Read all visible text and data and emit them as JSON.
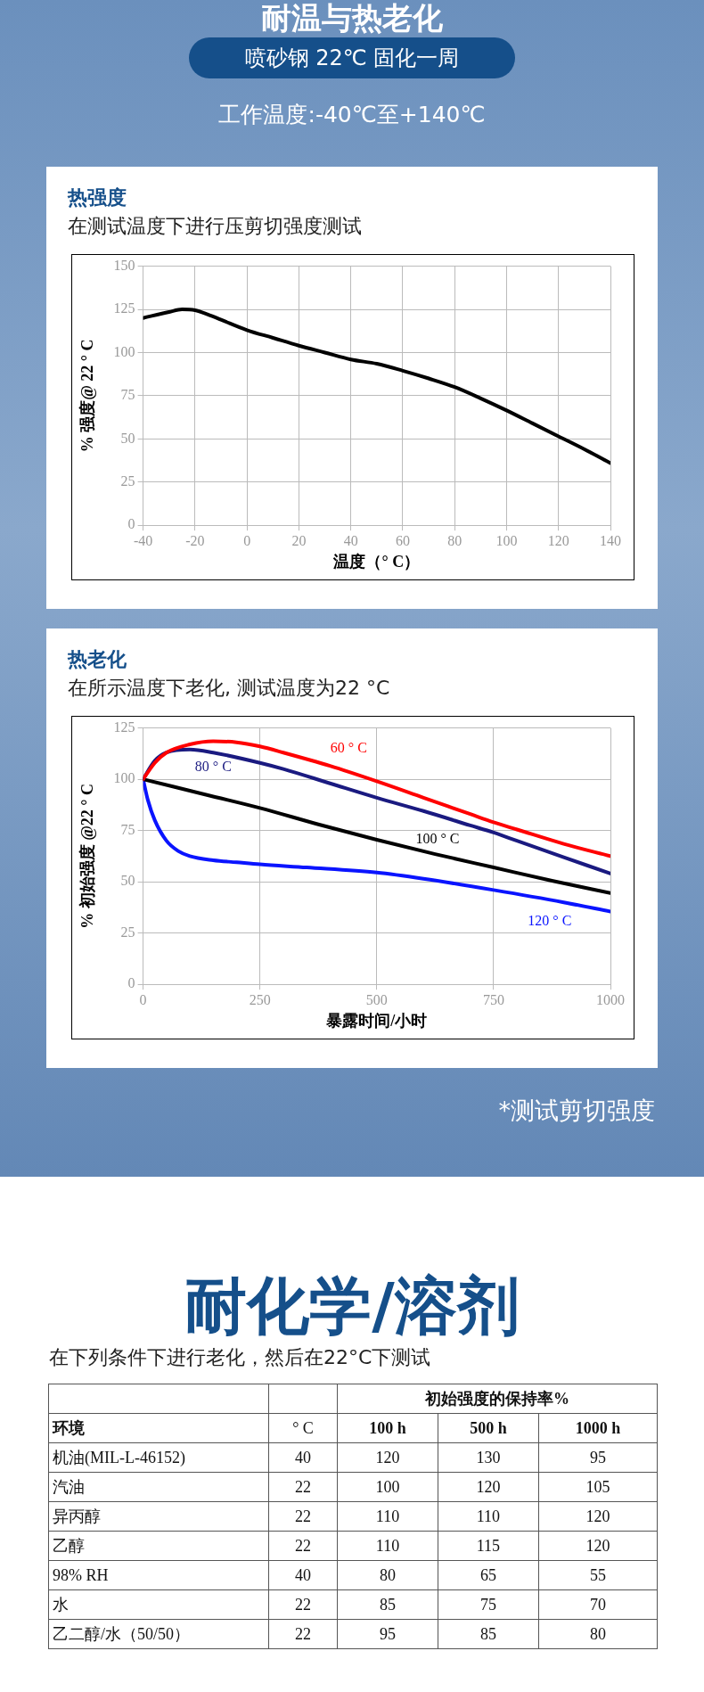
{
  "chart_data": [
    {
      "type": "other",
      "title": "耐温与热老化",
      "subtitle": "喷砂钢 22℃ 固化一周",
      "annotations": [
        "工作温度:-40℃至+140℃"
      ]
    },
    {
      "type": "line",
      "title": "热强度",
      "subtitle": "在测试温度下进行压剪切强度测试",
      "xlabel": "温度（° C）",
      "ylabel": "% 强度@ 22 ° C",
      "x": [
        -40,
        -30,
        -25,
        -20,
        -15,
        -10,
        0,
        10,
        20,
        30,
        40,
        50,
        60,
        70,
        80,
        90,
        100,
        110,
        120,
        130,
        140
      ],
      "values": [
        120,
        123.5,
        125,
        124.5,
        122,
        119,
        113,
        108.5,
        104,
        100,
        96,
        93.5,
        89.5,
        85,
        80,
        73.5,
        66.5,
        59,
        51.5,
        44,
        36
      ],
      "color": "#000000",
      "xlim": [
        -40,
        140
      ],
      "xticks": [
        -40,
        -20,
        0,
        20,
        40,
        60,
        80,
        100,
        120,
        140
      ],
      "ylim": [
        0,
        150
      ],
      "yticks": [
        0,
        25,
        50,
        75,
        100,
        125,
        150
      ],
      "grid": true,
      "legend": false
    },
    {
      "type": "line",
      "title": "热老化",
      "subtitle": "在所示温度下老化, 测试温度为22 °C",
      "xlabel": "暴露时间/小时",
      "ylabel": "% 初始强度 @22 ° C",
      "series": [
        {
          "name": "60 ° C",
          "color": "#ff0000",
          "x": [
            0,
            25,
            50,
            100,
            150,
            200,
            250,
            300,
            400,
            500,
            600,
            700,
            750,
            800,
            900,
            1000
          ],
          "values": [
            100,
            108,
            113,
            117,
            118.5,
            118,
            116,
            113,
            106.5,
            99,
            91,
            83,
            79,
            75.5,
            68.5,
            62.5
          ]
        },
        {
          "name": "80 ° C",
          "color": "#1a1a80",
          "x": [
            0,
            25,
            50,
            100,
            150,
            250,
            300,
            400,
            500,
            600,
            700,
            750,
            800,
            900,
            1000
          ],
          "values": [
            100,
            109,
            113,
            114.5,
            113,
            108,
            105,
            98,
            91,
            84.5,
            77.5,
            74,
            70,
            62,
            54
          ]
        },
        {
          "name": "100 ° C",
          "color": "#000000",
          "x": [
            0,
            125,
            250,
            375,
            500,
            625,
            750,
            875,
            1000
          ],
          "values": [
            100,
            93,
            86,
            78,
            70.5,
            63.5,
            57,
            50.5,
            44.5
          ]
        },
        {
          "name": "120 ° C",
          "color": "#0a14ff",
          "x": [
            0,
            10,
            25,
            50,
            75,
            100,
            150,
            200,
            250,
            350,
            500,
            600,
            750,
            900,
            1000
          ],
          "values": [
            100,
            90,
            80,
            70,
            65,
            62.5,
            60.5,
            59.5,
            58.5,
            57,
            54.5,
            51.5,
            46,
            40,
            35.5
          ]
        }
      ],
      "xlim": [
        0,
        1000
      ],
      "xticks": [
        0,
        250,
        500,
        750,
        1000
      ],
      "ylim": [
        0,
        125
      ],
      "yticks": [
        0,
        25,
        50,
        75,
        100,
        125
      ],
      "grid": true,
      "legend": false,
      "annotations": [
        "*测试剪切强度"
      ]
    },
    {
      "type": "heatmap",
      "title": "耐化学/溶剂",
      "subtitle": "在下列条件下进行老化，然后在22°C下测试",
      "xlabel": "初始强度的保持率%",
      "ylabel": "环境",
      "categories": [
        "° C",
        "100 h",
        "500 h",
        "1000 h"
      ],
      "data_labels": true,
      "y_categories": [
        "机油(MIL-L-46152)",
        "汽油",
        "异丙醇",
        "乙醇",
        "98% RH",
        "水",
        "乙二醇/水（50/50）"
      ],
      "cells": [
        [
          40,
          120,
          130,
          95
        ],
        [
          22,
          100,
          120,
          105
        ],
        [
          22,
          110,
          110,
          120
        ],
        [
          22,
          110,
          115,
          120
        ],
        [
          40,
          80,
          65,
          55
        ],
        [
          22,
          85,
          75,
          70
        ],
        [
          22,
          95,
          85,
          80
        ]
      ]
    }
  ]
}
